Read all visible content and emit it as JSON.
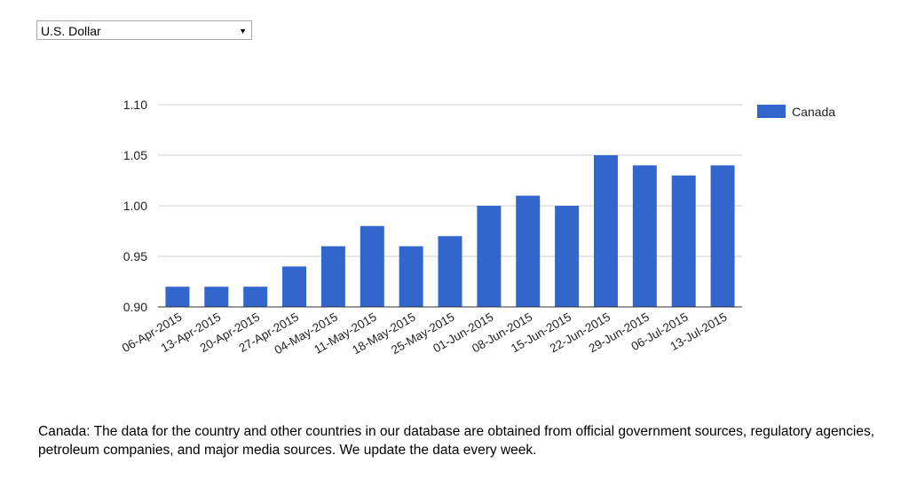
{
  "currency_selector": {
    "selected": "U.S. Dollar",
    "arrow_icon": "dropdown-arrow-icon"
  },
  "chart_data": {
    "type": "bar",
    "categories": [
      "06-Apr-2015",
      "13-Apr-2015",
      "20-Apr-2015",
      "27-Apr-2015",
      "04-May-2015",
      "11-May-2015",
      "18-May-2015",
      "25-May-2015",
      "01-Jun-2015",
      "08-Jun-2015",
      "15-Jun-2015",
      "22-Jun-2015",
      "29-Jun-2015",
      "06-Jul-2015",
      "13-Jul-2015"
    ],
    "series": [
      {
        "name": "Canada",
        "color": "#3366cc",
        "values": [
          0.92,
          0.92,
          0.92,
          0.94,
          0.96,
          0.98,
          0.96,
          0.97,
          1.0,
          1.01,
          1.0,
          1.05,
          1.04,
          1.03,
          1.04
        ]
      }
    ],
    "ylim": [
      0.9,
      1.1
    ],
    "yticks": [
      "0.90",
      "0.95",
      "1.00",
      "1.05",
      "1.10"
    ],
    "grid": true,
    "legend": "right"
  },
  "footnote": "Canada: The data for the country and other countries in our database are obtained from official government sources, regulatory agencies, petroleum companies, and major media sources. We update the data every week."
}
